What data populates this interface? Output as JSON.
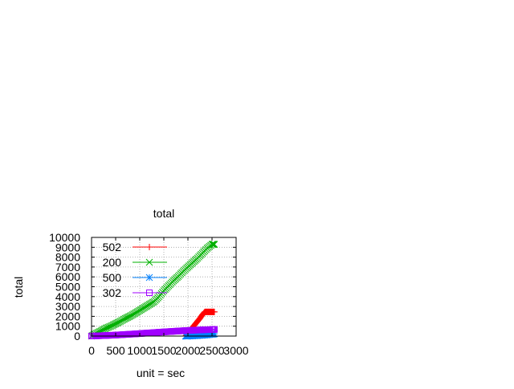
{
  "chart_data": {
    "type": "line",
    "title": "total",
    "xlabel": "unit = sec",
    "ylabel": "total",
    "xlim": [
      0,
      3000
    ],
    "ylim": [
      0,
      10000
    ],
    "x_ticks": [
      0,
      500,
      1000,
      1500,
      2000,
      2500,
      3000
    ],
    "y_ticks": [
      0,
      1000,
      2000,
      3000,
      4000,
      5000,
      6000,
      7000,
      8000,
      9000,
      10000
    ],
    "grid": true,
    "legend_position": "top-left",
    "series": [
      {
        "name": "502",
        "color": "#ff0000",
        "marker": "plus",
        "x": [
          1950,
          2000,
          2050,
          2100,
          2150,
          2200,
          2250,
          2300,
          2350,
          2400,
          2450,
          2500,
          2550
        ],
        "y": [
          0,
          200,
          550,
          900,
          1200,
          1500,
          1800,
          2150,
          2450,
          2450,
          2450,
          2450,
          2450
        ]
      },
      {
        "name": "200",
        "color": "#00b000",
        "marker": "cross",
        "x": [
          0,
          100,
          200,
          300,
          400,
          500,
          600,
          700,
          800,
          900,
          1000,
          1100,
          1200,
          1300,
          1400,
          1500,
          1600,
          1700,
          1800,
          1900,
          2000,
          2100,
          2200,
          2300,
          2400,
          2500,
          2550
        ],
        "y": [
          0,
          280,
          520,
          800,
          1000,
          1250,
          1500,
          1780,
          2020,
          2300,
          2600,
          2900,
          3200,
          3500,
          4000,
          4600,
          5100,
          5600,
          6050,
          6550,
          7000,
          7450,
          7900,
          8400,
          8900,
          9300,
          9300
        ]
      },
      {
        "name": "500",
        "color": "#0080ff",
        "marker": "star",
        "x": [
          1950,
          2000,
          2100,
          2200,
          2300,
          2400,
          2500,
          2550
        ],
        "y": [
          0,
          0,
          20,
          50,
          80,
          120,
          180,
          230
        ]
      },
      {
        "name": "302",
        "color": "#a000ff",
        "marker": "square",
        "x": [
          0,
          100,
          200,
          300,
          400,
          500,
          600,
          700,
          800,
          900,
          1000,
          1100,
          1200,
          1300,
          1400,
          1500,
          1600,
          1700,
          1800,
          1900,
          2000,
          2100,
          2200,
          2300,
          2400,
          2500,
          2550
        ],
        "y": [
          0,
          20,
          40,
          60,
          80,
          100,
          130,
          160,
          190,
          220,
          250,
          290,
          320,
          350,
          390,
          420,
          450,
          480,
          510,
          540,
          570,
          590,
          610,
          630,
          650,
          660,
          670
        ]
      }
    ]
  }
}
